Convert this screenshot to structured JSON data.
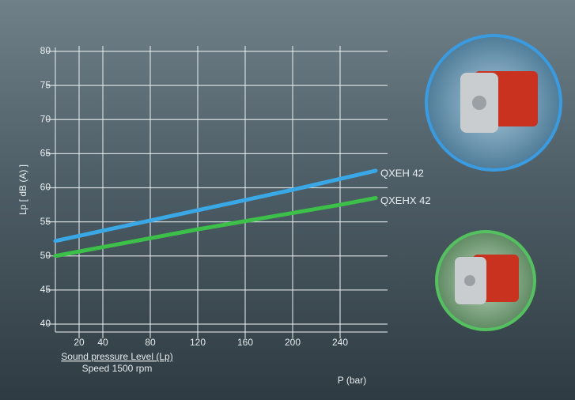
{
  "chart_data": {
    "type": "line",
    "xlabel": "P (bar)",
    "ylabel": "Lp [ dB (A) ]",
    "annotations": [
      "Sound pressure Level (Lp)",
      "Speed  1500 rpm"
    ],
    "x": [
      0,
      40,
      80,
      120,
      160,
      200,
      240,
      270
    ],
    "series": [
      {
        "name": "QXEH 42",
        "color": "#3aa8e6",
        "values": [
          52.2,
          53.7,
          55.2,
          56.7,
          58.2,
          59.7,
          61.3,
          62.5
        ]
      },
      {
        "name": "QXEHX 42",
        "color": "#3cc04a",
        "values": [
          50,
          51.3,
          52.6,
          53.9,
          55.1,
          56.3,
          57.5,
          58.5
        ]
      }
    ],
    "xlim": [
      0,
      280
    ],
    "xticks": [
      20,
      40,
      80,
      120,
      160,
      200,
      240
    ],
    "ylim": [
      40,
      80
    ],
    "yticks": [
      40,
      45,
      50,
      55,
      60,
      65,
      70,
      75,
      80
    ],
    "grid": true
  }
}
